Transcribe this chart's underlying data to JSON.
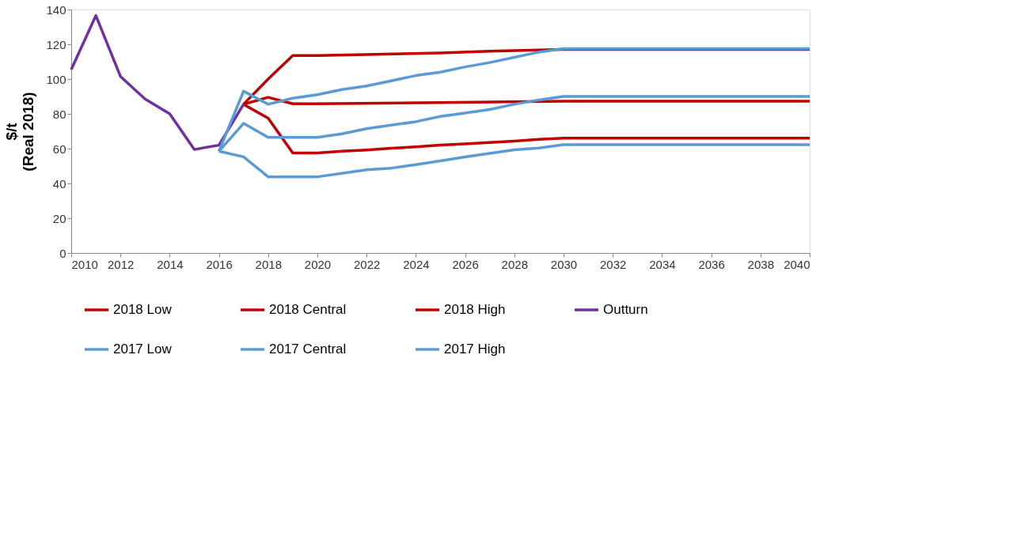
{
  "chart_data": {
    "type": "line",
    "ylabel": "$/t\n(Real 2018)",
    "xlim": [
      2010,
      2040
    ],
    "xticks": [
      2010,
      2012,
      2014,
      2016,
      2018,
      2020,
      2022,
      2024,
      2026,
      2028,
      2030,
      2032,
      2034,
      2036,
      2038,
      2040
    ],
    "ylim": [
      0,
      140
    ],
    "yticks": [
      0,
      20,
      40,
      60,
      80,
      100,
      120,
      140
    ],
    "grid": false,
    "legend": "bottom",
    "marker": "none",
    "line_style": "solid",
    "series": [
      {
        "name": "2018 Low",
        "color": "#c00000",
        "x": [
          2017,
          2018,
          2019,
          2020,
          2021,
          2022,
          2023,
          2024,
          2025,
          2026,
          2027,
          2028,
          2029,
          2030,
          2040
        ],
        "values": [
          85.5,
          77.5,
          57.5,
          57.5,
          58.5,
          59.2,
          60.2,
          61,
          62,
          62.7,
          63.5,
          64.3,
          65.3,
          66,
          66
        ]
      },
      {
        "name": "2018 Central",
        "color": "#c00000",
        "x": [
          2017,
          2018,
          2019,
          2020,
          2025,
          2030,
          2040
        ],
        "values": [
          85.5,
          89.5,
          85.8,
          85.8,
          86.5,
          87.3,
          87.3
        ]
      },
      {
        "name": "2018 High",
        "color": "#c00000",
        "x": [
          2017,
          2018,
          2019,
          2020,
          2025,
          2027,
          2030,
          2040
        ],
        "values": [
          85.5,
          100,
          113.5,
          113.5,
          115,
          116,
          117,
          117
        ]
      },
      {
        "name": "Outturn",
        "color": "#7030a0",
        "x": [
          2010,
          2011,
          2012,
          2013,
          2014,
          2015,
          2016,
          2017
        ],
        "values": [
          105.5,
          136.5,
          101.5,
          88.5,
          80,
          59.5,
          62,
          85.5
        ]
      },
      {
        "name": "2017 Low",
        "color": "#5b9bd5",
        "x": [
          2016,
          2017,
          2018,
          2019,
          2020,
          2021,
          2022,
          2023,
          2024,
          2025,
          2026,
          2027,
          2028,
          2029,
          2030,
          2040
        ],
        "values": [
          58.5,
          55.3,
          43.8,
          43.8,
          43.8,
          45.8,
          47.8,
          48.8,
          50.8,
          53,
          55.2,
          57.3,
          59.3,
          60.3,
          62.3,
          62.3
        ]
      },
      {
        "name": "2017 Central",
        "color": "#5b9bd5",
        "x": [
          2016,
          2017,
          2018,
          2019,
          2020,
          2021,
          2022,
          2023,
          2024,
          2025,
          2026,
          2027,
          2028,
          2029,
          2030,
          2040
        ],
        "values": [
          58.5,
          74.5,
          66.5,
          66.5,
          66.5,
          68.5,
          71.5,
          73.5,
          75.5,
          78.5,
          80.5,
          82.5,
          85.5,
          88,
          90,
          90
        ]
      },
      {
        "name": "2017 High",
        "color": "#5b9bd5",
        "x": [
          2016,
          2017,
          2018,
          2019,
          2020,
          2021,
          2022,
          2023,
          2024,
          2025,
          2026,
          2027,
          2028,
          2029,
          2030,
          2040
        ],
        "values": [
          58.5,
          93,
          85.5,
          89,
          91,
          94,
          96,
          99,
          102,
          104,
          107,
          109.5,
          112.5,
          115.5,
          117.5,
          117.5
        ]
      }
    ]
  }
}
